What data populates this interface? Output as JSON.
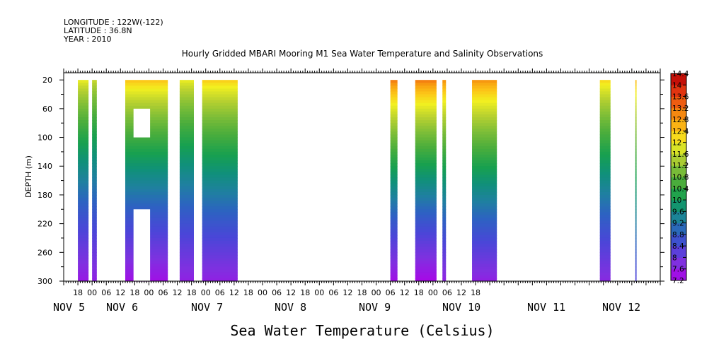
{
  "header": {
    "longitude": "LONGITUDE : 122W(-122)",
    "latitude": "LATITUDE : 36.8N",
    "year": "YEAR : 2010"
  },
  "chart_data": {
    "type": "heatmap",
    "title": "Hourly Gridded MBARI Mooring M1 Sea Water Temperature and Salinity Observations",
    "ylabel": "DEPTH (m)",
    "xlabel": "Sea Water Temperature (Celsius)",
    "ylim": [
      300,
      10
    ],
    "y_ticks": [
      20,
      60,
      100,
      140,
      180,
      220,
      260,
      300
    ],
    "x_tick_labels": [
      "18",
      "00",
      "06",
      "12",
      "18",
      "00",
      "06",
      "12",
      "18",
      "00",
      "06",
      "12",
      "18",
      "00",
      "06",
      "12",
      "18",
      "00",
      "06",
      "12",
      "18",
      "00",
      "06",
      "12",
      "18",
      "00",
      "06",
      "12",
      "18"
    ],
    "day_labels": [
      "NOV  5",
      "NOV  6",
      "NOV  7",
      "NOV  8",
      "NOV  9",
      "NOV 10",
      "NOV 11",
      "NOV 12"
    ],
    "colorbar": {
      "levels": [
        7.2,
        7.6,
        8,
        8.4,
        8.8,
        9.2,
        9.6,
        10,
        10.4,
        10.8,
        11.2,
        11.6,
        12,
        12.4,
        12.8,
        13.2,
        13.6,
        14,
        14.4
      ],
      "labels": [
        "14.4",
        "14",
        "13.6",
        "13.2",
        "12.8",
        "12.4",
        "12",
        "11.6",
        "11.2",
        "10.8",
        "10.4",
        "10",
        "9.6",
        "9.2",
        "8.8",
        "8.4",
        "8",
        "7.6",
        "7.2"
      ]
    },
    "data_segments": [
      {
        "start_h": 6,
        "end_h": 10.5,
        "surface_c": 12.0,
        "bottom_c": 7.5
      },
      {
        "start_h": 12,
        "end_h": 14,
        "surface_c": 11.7,
        "bottom_c": 7.6
      },
      {
        "start_h": 26,
        "end_h": 44,
        "surface_c": 12.5,
        "bottom_c": 7.4
      },
      {
        "start_h": 49,
        "end_h": 55,
        "surface_c": 12.0,
        "bottom_c": 7.6
      },
      {
        "start_h": 58.5,
        "end_h": 73.5,
        "surface_c": 12.4,
        "bottom_c": 7.6
      },
      {
        "start_h": 138,
        "end_h": 141,
        "surface_c": 13.2,
        "bottom_c": 7.4
      },
      {
        "start_h": 148.5,
        "end_h": 157.5,
        "surface_c": 13.2,
        "bottom_c": 7.3
      },
      {
        "start_h": 160,
        "end_h": 161.5,
        "surface_c": 13.0,
        "bottom_c": 7.6
      },
      {
        "start_h": 172.5,
        "end_h": 183,
        "surface_c": 13.0,
        "bottom_c": 7.6
      },
      {
        "start_h": 226.5,
        "end_h": 231,
        "surface_c": 12.3,
        "bottom_c": 7.7
      },
      {
        "start_h": 241.5,
        "end_h": 242,
        "surface_c": 12.6,
        "bottom_c": 8.3
      }
    ],
    "gaps": [
      {
        "start_h": 29.5,
        "end_h": 36.5,
        "depth_top": 60,
        "depth_bottom": 100
      },
      {
        "start_h": 29.5,
        "end_h": 36.5,
        "depth_top": 200,
        "depth_bottom": 300
      }
    ]
  }
}
